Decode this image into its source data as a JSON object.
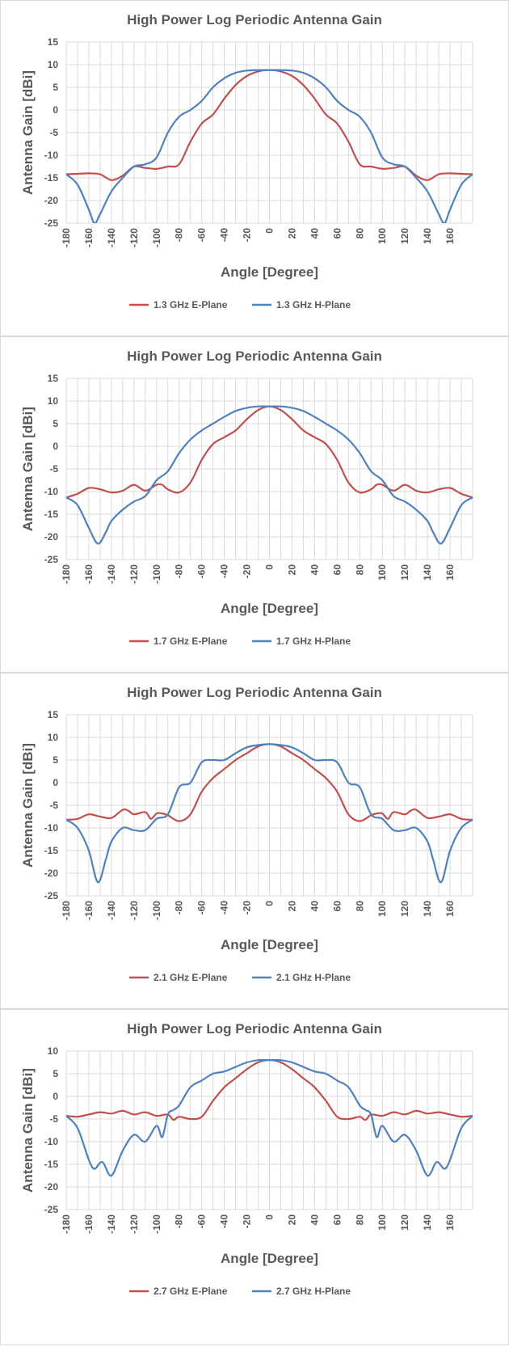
{
  "colors": {
    "e_plane": "#C0504D",
    "h_plane": "#4F81BD"
  },
  "chart_data": [
    {
      "type": "line",
      "title": "High Power Log Periodic Antenna Gain",
      "xlabel": "Angle [Degree]",
      "ylabel": "Antenna Gain [dBi]",
      "xlim": [
        -180,
        180
      ],
      "ylim": [
        -25,
        15
      ],
      "xticks": [
        -180,
        -160,
        -140,
        -120,
        -100,
        -80,
        -60,
        -40,
        -20,
        0,
        20,
        40,
        60,
        80,
        100,
        120,
        140,
        160
      ],
      "yticks": [
        15,
        10,
        5,
        0,
        -5,
        -10,
        -15,
        -20,
        -25
      ],
      "grid": true,
      "legend_position": "bottom",
      "series": [
        {
          "name": "1.3 GHz E-Plane",
          "x": [
            -180,
            -170,
            -160,
            -150,
            -140,
            -130,
            -120,
            -110,
            -100,
            -90,
            -80,
            -70,
            -60,
            -50,
            -40,
            -30,
            -20,
            -10,
            0,
            10,
            20,
            30,
            40,
            50,
            60,
            70,
            80,
            90,
            100,
            110,
            120,
            130,
            140,
            150,
            160,
            170,
            180
          ],
          "y": [
            -14.2,
            -14.1,
            -14.0,
            -14.2,
            -15.5,
            -14.5,
            -12.5,
            -12.8,
            -13.0,
            -12.5,
            -12.0,
            -7.0,
            -3.0,
            -1.0,
            2.5,
            5.5,
            7.5,
            8.5,
            8.8,
            8.5,
            7.5,
            5.5,
            2.5,
            -1.0,
            -3.0,
            -7.0,
            -12.0,
            -12.5,
            -13.0,
            -12.8,
            -12.5,
            -14.5,
            -15.5,
            -14.2,
            -14.0,
            -14.1,
            -14.2
          ]
        },
        {
          "name": "1.3 GHz H-Plane",
          "x": [
            -180,
            -170,
            -160,
            -155,
            -150,
            -140,
            -130,
            -120,
            -110,
            -100,
            -90,
            -80,
            -70,
            -60,
            -50,
            -40,
            -30,
            -20,
            -10,
            0,
            10,
            20,
            30,
            40,
            50,
            60,
            70,
            80,
            90,
            100,
            110,
            120,
            130,
            140,
            150,
            155,
            160,
            170,
            180
          ],
          "y": [
            -14.2,
            -16.5,
            -22.0,
            -25.0,
            -23.0,
            -18.0,
            -15.0,
            -12.5,
            -12.0,
            -10.5,
            -5.0,
            -1.5,
            0.0,
            2.0,
            5.0,
            7.0,
            8.2,
            8.7,
            8.8,
            8.8,
            8.8,
            8.7,
            8.2,
            7.0,
            5.0,
            2.0,
            0.0,
            -1.5,
            -5.0,
            -10.5,
            -12.0,
            -12.5,
            -15.0,
            -18.0,
            -23.0,
            -25.0,
            -22.0,
            -16.5,
            -14.2
          ]
        }
      ]
    },
    {
      "type": "line",
      "title": "High Power Log Periodic Antenna Gain",
      "xlabel": "Angle [Degree]",
      "ylabel": "Antenna Gain [dBi]",
      "xlim": [
        -180,
        180
      ],
      "ylim": [
        -25,
        15
      ],
      "xticks": [
        -180,
        -160,
        -140,
        -120,
        -100,
        -80,
        -60,
        -40,
        -20,
        0,
        20,
        40,
        60,
        80,
        100,
        120,
        140,
        160
      ],
      "yticks": [
        15,
        10,
        5,
        0,
        -5,
        -10,
        -15,
        -20,
        -25
      ],
      "grid": true,
      "legend_position": "bottom",
      "series": [
        {
          "name": "1.7 GHz E-Plane",
          "x": [
            -180,
            -170,
            -160,
            -150,
            -140,
            -130,
            -120,
            -110,
            -100,
            -95,
            -90,
            -80,
            -70,
            -60,
            -50,
            -40,
            -30,
            -20,
            -10,
            0,
            10,
            20,
            30,
            40,
            50,
            60,
            70,
            80,
            90,
            95,
            100,
            110,
            120,
            130,
            140,
            150,
            160,
            170,
            180
          ],
          "y": [
            -11.3,
            -10.5,
            -9.2,
            -9.5,
            -10.2,
            -9.8,
            -8.5,
            -9.8,
            -8.5,
            -8.5,
            -9.5,
            -10.2,
            -8.0,
            -3.0,
            0.5,
            2.0,
            3.5,
            6.0,
            8.0,
            8.8,
            8.0,
            6.0,
            3.5,
            2.0,
            0.5,
            -3.0,
            -8.0,
            -10.2,
            -9.5,
            -8.5,
            -8.5,
            -9.8,
            -8.5,
            -9.8,
            -10.2,
            -9.5,
            -9.2,
            -10.5,
            -11.3
          ]
        },
        {
          "name": "1.7 GHz H-Plane",
          "x": [
            -180,
            -170,
            -160,
            -152,
            -145,
            -140,
            -130,
            -120,
            -110,
            -100,
            -90,
            -80,
            -70,
            -60,
            -50,
            -40,
            -30,
            -20,
            -10,
            0,
            10,
            20,
            30,
            40,
            50,
            60,
            70,
            80,
            90,
            100,
            110,
            120,
            130,
            140,
            145,
            152,
            160,
            170,
            180
          ],
          "y": [
            -11.3,
            -13.0,
            -18.0,
            -21.5,
            -19.0,
            -16.5,
            -14.0,
            -12.2,
            -11.0,
            -7.5,
            -5.5,
            -1.5,
            1.5,
            3.5,
            5.0,
            6.5,
            7.8,
            8.5,
            8.8,
            8.8,
            8.8,
            8.5,
            7.8,
            6.5,
            5.0,
            3.5,
            1.5,
            -1.5,
            -5.5,
            -7.5,
            -11.0,
            -12.2,
            -14.0,
            -16.5,
            -19.0,
            -21.5,
            -18.0,
            -13.0,
            -11.3
          ]
        }
      ]
    },
    {
      "type": "line",
      "title": "High Power Log Periodic Antenna Gain",
      "xlabel": "Angle [Degree]",
      "ylabel": "Antenna Gain [dBi]",
      "xlim": [
        -180,
        180
      ],
      "ylim": [
        -25,
        15
      ],
      "xticks": [
        -180,
        -160,
        -140,
        -120,
        -100,
        -80,
        -60,
        -40,
        -20,
        0,
        20,
        40,
        60,
        80,
        100,
        120,
        140,
        160
      ],
      "yticks": [
        15,
        10,
        5,
        0,
        -5,
        -10,
        -15,
        -20,
        -25
      ],
      "grid": true,
      "legend_position": "bottom",
      "series": [
        {
          "name": "2.1 GHz E-Plane",
          "x": [
            -180,
            -170,
            -160,
            -150,
            -140,
            -130,
            -125,
            -120,
            -110,
            -105,
            -100,
            -95,
            -90,
            -80,
            -70,
            -60,
            -50,
            -40,
            -30,
            -20,
            -10,
            0,
            10,
            20,
            30,
            40,
            50,
            60,
            70,
            80,
            90,
            95,
            100,
            105,
            110,
            120,
            125,
            130,
            140,
            150,
            160,
            170,
            180
          ],
          "y": [
            -8.2,
            -8.0,
            -7.0,
            -7.5,
            -7.8,
            -6.0,
            -6.2,
            -7.0,
            -6.5,
            -8.0,
            -6.8,
            -6.8,
            -7.2,
            -8.5,
            -7.0,
            -2.0,
            1.0,
            3.0,
            5.0,
            6.5,
            8.0,
            8.5,
            8.0,
            6.5,
            5.0,
            3.0,
            1.0,
            -2.0,
            -7.0,
            -8.5,
            -7.2,
            -6.8,
            -6.8,
            -8.0,
            -6.5,
            -7.0,
            -6.2,
            -6.0,
            -7.8,
            -7.5,
            -7.0,
            -8.0,
            -8.2
          ]
        },
        {
          "name": "2.1 GHz H-Plane",
          "x": [
            -180,
            -170,
            -160,
            -152,
            -145,
            -140,
            -130,
            -120,
            -110,
            -100,
            -90,
            -80,
            -70,
            -60,
            -50,
            -40,
            -30,
            -20,
            -10,
            0,
            10,
            20,
            30,
            40,
            50,
            60,
            70,
            80,
            90,
            100,
            110,
            120,
            130,
            140,
            145,
            152,
            160,
            170,
            180
          ],
          "y": [
            -8.2,
            -10.0,
            -15.0,
            -22.0,
            -17.0,
            -13.0,
            -10.0,
            -10.5,
            -10.5,
            -8.0,
            -7.0,
            -1.0,
            0.0,
            4.5,
            5.0,
            5.0,
            6.5,
            7.8,
            8.3,
            8.5,
            8.3,
            7.8,
            6.5,
            5.0,
            5.0,
            4.5,
            0.0,
            -1.0,
            -7.0,
            -8.0,
            -10.5,
            -10.5,
            -10.0,
            -13.0,
            -17.0,
            -22.0,
            -15.0,
            -10.0,
            -8.2
          ]
        }
      ]
    },
    {
      "type": "line",
      "title": "High Power Log Periodic Antenna Gain",
      "xlabel": "Angle [Degree]",
      "ylabel": "Antenna Gain [dBi]",
      "xlim": [
        -180,
        180
      ],
      "ylim": [
        -25,
        10
      ],
      "xticks": [
        -180,
        -160,
        -140,
        -120,
        -100,
        -80,
        -60,
        -40,
        -20,
        0,
        20,
        40,
        60,
        80,
        100,
        120,
        140,
        160
      ],
      "yticks": [
        10,
        5,
        0,
        -5,
        -10,
        -15,
        -20,
        -25
      ],
      "grid": true,
      "legend_position": "bottom",
      "series": [
        {
          "name": "2.7 GHz E-Plane",
          "x": [
            -180,
            -170,
            -160,
            -150,
            -140,
            -130,
            -120,
            -110,
            -100,
            -90,
            -85,
            -80,
            -70,
            -60,
            -50,
            -40,
            -30,
            -20,
            -10,
            0,
            10,
            20,
            30,
            40,
            50,
            60,
            70,
            80,
            85,
            90,
            100,
            110,
            120,
            130,
            140,
            150,
            160,
            170,
            180
          ],
          "y": [
            -4.3,
            -4.5,
            -4.0,
            -3.5,
            -3.8,
            -3.2,
            -4.0,
            -3.5,
            -4.3,
            -4.0,
            -5.2,
            -4.5,
            -5.0,
            -4.5,
            -1.0,
            2.0,
            4.0,
            6.0,
            7.5,
            8.0,
            7.5,
            6.0,
            4.0,
            2.0,
            -1.0,
            -4.5,
            -5.0,
            -4.5,
            -5.2,
            -4.0,
            -4.3,
            -3.5,
            -4.0,
            -3.2,
            -3.8,
            -3.5,
            -4.0,
            -4.5,
            -4.3
          ]
        },
        {
          "name": "2.7 GHz H-Plane",
          "x": [
            -180,
            -170,
            -160,
            -155,
            -148,
            -140,
            -130,
            -120,
            -110,
            -100,
            -95,
            -90,
            -85,
            -80,
            -70,
            -60,
            -50,
            -40,
            -30,
            -20,
            -10,
            0,
            10,
            20,
            30,
            40,
            50,
            60,
            70,
            80,
            85,
            90,
            95,
            100,
            110,
            120,
            130,
            140,
            148,
            155,
            160,
            170,
            180
          ],
          "y": [
            -4.3,
            -7.0,
            -14.0,
            -16.0,
            -14.5,
            -17.5,
            -12.0,
            -8.5,
            -10.0,
            -6.5,
            -9.0,
            -4.0,
            -3.0,
            -2.0,
            2.0,
            3.5,
            5.0,
            5.5,
            6.5,
            7.5,
            8.0,
            8.0,
            8.0,
            7.5,
            6.5,
            5.5,
            5.0,
            3.5,
            2.0,
            -2.0,
            -3.0,
            -4.0,
            -9.0,
            -6.5,
            -10.0,
            -8.5,
            -12.0,
            -17.5,
            -14.5,
            -16.0,
            -14.0,
            -7.0,
            -4.3
          ]
        }
      ]
    }
  ]
}
